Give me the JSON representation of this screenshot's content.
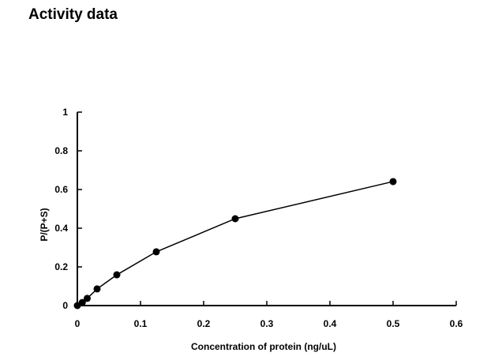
{
  "page_title": "Activity data",
  "chart_data": {
    "type": "line",
    "title": "",
    "xlabel": "Concentration of protein (ng/uL)",
    "ylabel": "P/(P+S)",
    "xlim": [
      0,
      0.6
    ],
    "ylim": [
      0,
      1
    ],
    "xticks": [
      "0",
      "0.1",
      "0.2",
      "0.3",
      "0.4",
      "0.5",
      "0.6"
    ],
    "yticks": [
      "0",
      "0.2",
      "0.4",
      "0.6",
      "0.8",
      "1"
    ],
    "grid": false,
    "marker": "filled-circle",
    "color": "#000000",
    "x": [
      0,
      0.0078,
      0.0156,
      0.03125,
      0.0625,
      0.125,
      0.25,
      0.5
    ],
    "y": [
      0,
      0.016,
      0.037,
      0.086,
      0.159,
      0.278,
      0.449,
      0.641
    ]
  }
}
